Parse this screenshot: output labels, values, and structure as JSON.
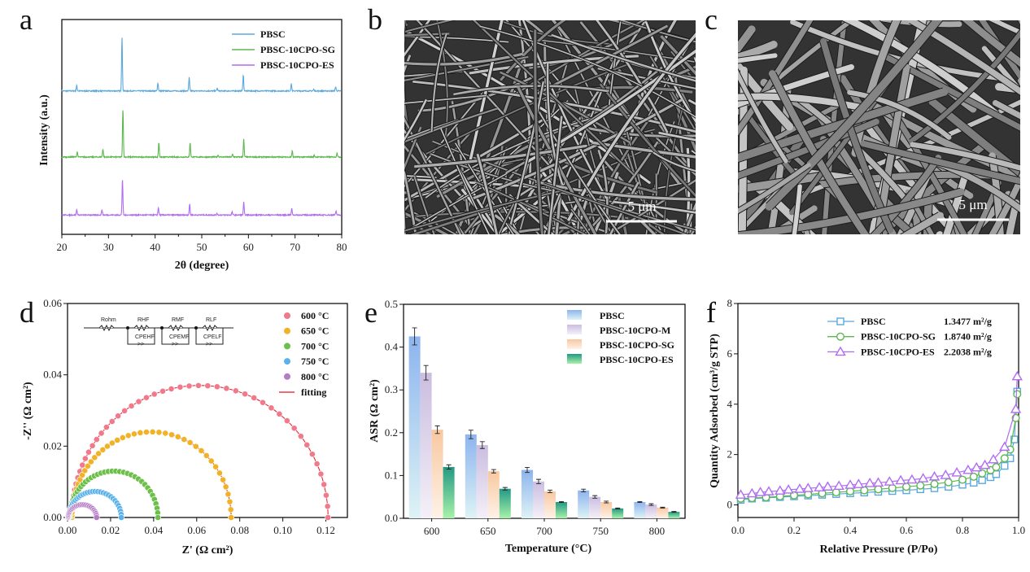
{
  "panel_letters": {
    "a": "a",
    "b": "b",
    "c": "c",
    "d": "d",
    "e": "e",
    "f": "f"
  },
  "sem": {
    "b": {
      "scale_label": "5 μm"
    },
    "c": {
      "scale_label": "5 μm"
    }
  },
  "circuit_labels": [
    "Rohm",
    "RHF",
    "CPEHF",
    "RMF",
    "CPEMF",
    "RLF",
    "CPELF"
  ],
  "chart_data": [
    {
      "id": "a",
      "type": "line",
      "title": "",
      "xlabel": "2θ (degree)",
      "ylabel": "Intensity (a.u.)",
      "xlim": [
        20,
        80
      ],
      "ylim": [
        0,
        4
      ],
      "xticks": [
        20,
        30,
        40,
        50,
        60,
        70,
        80
      ],
      "legend_position": "top-right",
      "series": [
        {
          "name": "PBSC",
          "color": "#5ba8dc",
          "offset": 2.67,
          "peaks": [
            [
              23.2,
              0.1
            ],
            [
              32.9,
              1.0
            ],
            [
              40.6,
              0.15
            ],
            [
              47.3,
              0.25
            ],
            [
              53.3,
              0.05
            ],
            [
              58.9,
              0.3
            ],
            [
              69.2,
              0.13
            ],
            [
              74.0,
              0.03
            ],
            [
              78.7,
              0.08
            ]
          ]
        },
        {
          "name": "PBSC-10CPO-SG",
          "color": "#5cb84e",
          "offset": 1.44,
          "peaks": [
            [
              23.3,
              0.1
            ],
            [
              28.8,
              0.15
            ],
            [
              33.1,
              0.9
            ],
            [
              40.8,
              0.27
            ],
            [
              47.5,
              0.27
            ],
            [
              53.5,
              0.04
            ],
            [
              56.6,
              0.05
            ],
            [
              59.0,
              0.33
            ],
            [
              69.4,
              0.11
            ],
            [
              74.1,
              0.03
            ],
            [
              79.0,
              0.08
            ]
          ]
        },
        {
          "name": "PBSC-10CPO-ES",
          "color": "#b06cf2",
          "offset": 0.36,
          "peaks": [
            [
              23.2,
              0.1
            ],
            [
              28.6,
              0.1
            ],
            [
              33.0,
              0.67
            ],
            [
              40.7,
              0.14
            ],
            [
              47.4,
              0.2
            ],
            [
              53.3,
              0.03
            ],
            [
              56.5,
              0.06
            ],
            [
              59.0,
              0.24
            ],
            [
              69.3,
              0.12
            ],
            [
              78.8,
              0.07
            ]
          ]
        }
      ]
    },
    {
      "id": "d",
      "type": "scatter",
      "title": "",
      "xlabel": "Z' (Ω cm²)",
      "ylabel": "-Z'' (Ω cm²)",
      "xlim": [
        0,
        0.13
      ],
      "ylim": [
        0,
        0.06
      ],
      "xticks": [
        "0.00",
        "0.02",
        "0.04",
        "0.06",
        "0.08",
        "0.10",
        "0.12"
      ],
      "yticks": [
        "0.00",
        "0.02",
        "0.04",
        "0.06"
      ],
      "legend_position": "top-right",
      "fitting": {
        "name": "fitting",
        "color": "#e8141c"
      },
      "series": [
        {
          "name": "600 °C",
          "color": "#f07a8c",
          "x_start": 0.002,
          "x_end": 0.121,
          "peak": 0.037,
          "n": 48
        },
        {
          "name": "650 °C",
          "color": "#f2b228",
          "x_start": 0.002,
          "x_end": 0.076,
          "peak": 0.024,
          "n": 44
        },
        {
          "name": "700 °C",
          "color": "#6cc04a",
          "x_start": 0.001,
          "x_end": 0.042,
          "peak": 0.013,
          "n": 40
        },
        {
          "name": "750 °C",
          "color": "#5ab2ea",
          "x_start": 0.0005,
          "x_end": 0.025,
          "peak": 0.0073,
          "n": 34
        },
        {
          "name": "800 °C",
          "color": "#b47cc4",
          "x_start": 0.0003,
          "x_end": 0.0135,
          "peak": 0.0036,
          "n": 26
        }
      ]
    },
    {
      "id": "e",
      "type": "bar",
      "title": "",
      "xlabel": "Temperature (°C)",
      "ylabel": "ASR (Ω cm²)",
      "categories": [
        "600",
        "650",
        "700",
        "750",
        "800"
      ],
      "ylim": [
        0,
        0.5
      ],
      "yticks": [
        "0.0",
        "0.1",
        "0.2",
        "0.3",
        "0.4",
        "0.5"
      ],
      "legend_position": "top-right",
      "series": [
        {
          "name": "PBSC",
          "top": "#8db4ee",
          "bottom": "#def3f5",
          "values": [
            0.425,
            0.196,
            0.113,
            0.065,
            0.038
          ],
          "errors": [
            0.02,
            0.01,
            0.006,
            0.003,
            0.001
          ]
        },
        {
          "name": "PBSC-10CPO-M",
          "top": "#cbbde0",
          "bottom": "#f4f0f8",
          "values": [
            0.34,
            0.171,
            0.086,
            0.05,
            0.032
          ],
          "errors": [
            0.017,
            0.008,
            0.005,
            0.003,
            0.002
          ]
        },
        {
          "name": "PBSC-10CPO-SG",
          "top": "#f8c8a0",
          "bottom": "#fef2e8",
          "values": [
            0.207,
            0.11,
            0.063,
            0.038,
            0.025
          ],
          "errors": [
            0.009,
            0.004,
            0.003,
            0.002,
            0.001
          ]
        },
        {
          "name": "PBSC-10CPO-ES",
          "top": "#229985",
          "bottom": "#a8f2a8",
          "values": [
            0.12,
            0.069,
            0.038,
            0.023,
            0.015
          ],
          "errors": [
            0.005,
            0.003,
            0.001,
            0.001,
            0.001
          ]
        }
      ]
    },
    {
      "id": "f",
      "type": "line",
      "title": "",
      "xlabel": "Relative Pressure (P/Po)",
      "ylabel": "Quantity Adsorbed (cm³/g STP)",
      "xlim": [
        0,
        1
      ],
      "ylim": [
        -0.5,
        8
      ],
      "xticks": [
        "0.0",
        "0.2",
        "0.4",
        "0.6",
        "0.8",
        "1.0"
      ],
      "yticks": [
        "0",
        "2",
        "4",
        "6",
        "8"
      ],
      "legend_position": "top-right",
      "series": [
        {
          "name": "PBSC",
          "surface_area": "1.3477 m²/g",
          "marker": "square",
          "color": "#5ba8dc",
          "x": [
            0.01,
            0.05,
            0.1,
            0.15,
            0.2,
            0.25,
            0.3,
            0.35,
            0.4,
            0.45,
            0.5,
            0.55,
            0.6,
            0.65,
            0.7,
            0.75,
            0.8,
            0.84,
            0.87,
            0.9,
            0.92,
            0.95,
            0.97,
            0.985,
            0.995
          ],
          "y": [
            0.2,
            0.25,
            0.28,
            0.31,
            0.34,
            0.37,
            0.4,
            0.43,
            0.46,
            0.49,
            0.52,
            0.55,
            0.58,
            0.62,
            0.66,
            0.72,
            0.8,
            0.88,
            0.98,
            1.1,
            1.22,
            1.55,
            1.85,
            2.6,
            4.5
          ]
        },
        {
          "name": "PBSC-10CPO-SG",
          "surface_area": "1.8740 m²/g",
          "marker": "circle",
          "color": "#5cb84e",
          "x": [
            0.01,
            0.05,
            0.1,
            0.15,
            0.2,
            0.25,
            0.3,
            0.35,
            0.4,
            0.45,
            0.5,
            0.55,
            0.6,
            0.65,
            0.7,
            0.75,
            0.8,
            0.84,
            0.87,
            0.9,
            0.92,
            0.95,
            0.97,
            0.99,
            0.995
          ],
          "y": [
            0.25,
            0.27,
            0.3,
            0.34,
            0.38,
            0.42,
            0.46,
            0.5,
            0.54,
            0.58,
            0.62,
            0.67,
            0.72,
            0.77,
            0.83,
            0.9,
            1.0,
            1.12,
            1.25,
            1.38,
            1.5,
            1.85,
            2.2,
            3.45,
            4.4
          ]
        },
        {
          "name": "PBSC-10CPO-ES",
          "surface_area": "2.2038 m²/g",
          "marker": "triangle",
          "color": "#b06cf2",
          "x": [
            0.01,
            0.05,
            0.08,
            0.11,
            0.15,
            0.18,
            0.22,
            0.25,
            0.29,
            0.32,
            0.36,
            0.4,
            0.43,
            0.47,
            0.5,
            0.54,
            0.58,
            0.62,
            0.66,
            0.7,
            0.74,
            0.78,
            0.82,
            0.85,
            0.88,
            0.91,
            0.95,
            0.99,
            0.995
          ],
          "y": [
            0.4,
            0.45,
            0.5,
            0.53,
            0.56,
            0.6,
            0.63,
            0.66,
            0.69,
            0.72,
            0.75,
            0.79,
            0.82,
            0.86,
            0.88,
            0.92,
            0.97,
            1.0,
            1.05,
            1.12,
            1.18,
            1.28,
            1.38,
            1.48,
            1.58,
            1.8,
            2.3,
            3.8,
            5.1
          ]
        }
      ]
    }
  ]
}
